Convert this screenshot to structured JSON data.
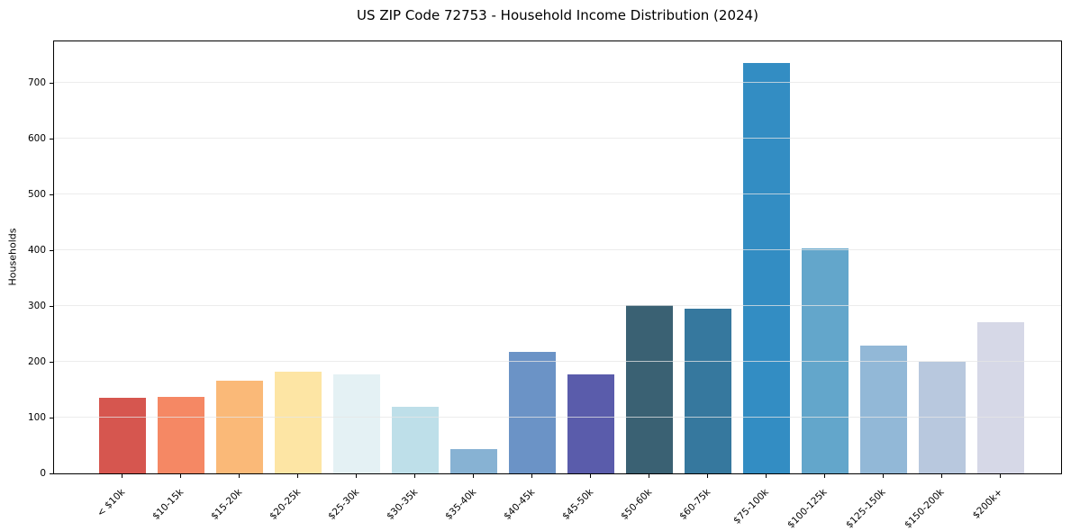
{
  "chart_data": {
    "type": "bar",
    "title": "US ZIP Code 72753 - Household Income Distribution (2024)",
    "xlabel": "",
    "ylabel": "Households",
    "categories": [
      "< $10k",
      "$10-15k",
      "$15-20k",
      "$20-25k",
      "$25-30k",
      "$30-35k",
      "$35-40k",
      "$40-45k",
      "$45-50k",
      "$50-60k",
      "$60-75k",
      "$75-100k",
      "$100-125k",
      "$125-150k",
      "$150-200k",
      "$200k+"
    ],
    "values": [
      136,
      137,
      167,
      182,
      178,
      119,
      43,
      218,
      178,
      302,
      295,
      736,
      404,
      230,
      200,
      271
    ],
    "bar_colors": [
      "#d6564f",
      "#f58864",
      "#fab978",
      "#fde5a4",
      "#e4f1f4",
      "#bedfe9",
      "#87b2d3",
      "#6b93c6",
      "#5a5cab",
      "#3a6173",
      "#36789e",
      "#338dc3",
      "#63a6cb",
      "#92b8d7",
      "#b8c8de",
      "#d6d8e7"
    ],
    "ylim": [
      0,
      775
    ],
    "yticks": [
      0,
      100,
      200,
      300,
      400,
      500,
      600,
      700
    ],
    "grid": "horizontal",
    "legend": "none",
    "grid_color": "#e5e5e5",
    "spine_color": "#000000",
    "background_color": "#ffffff"
  }
}
